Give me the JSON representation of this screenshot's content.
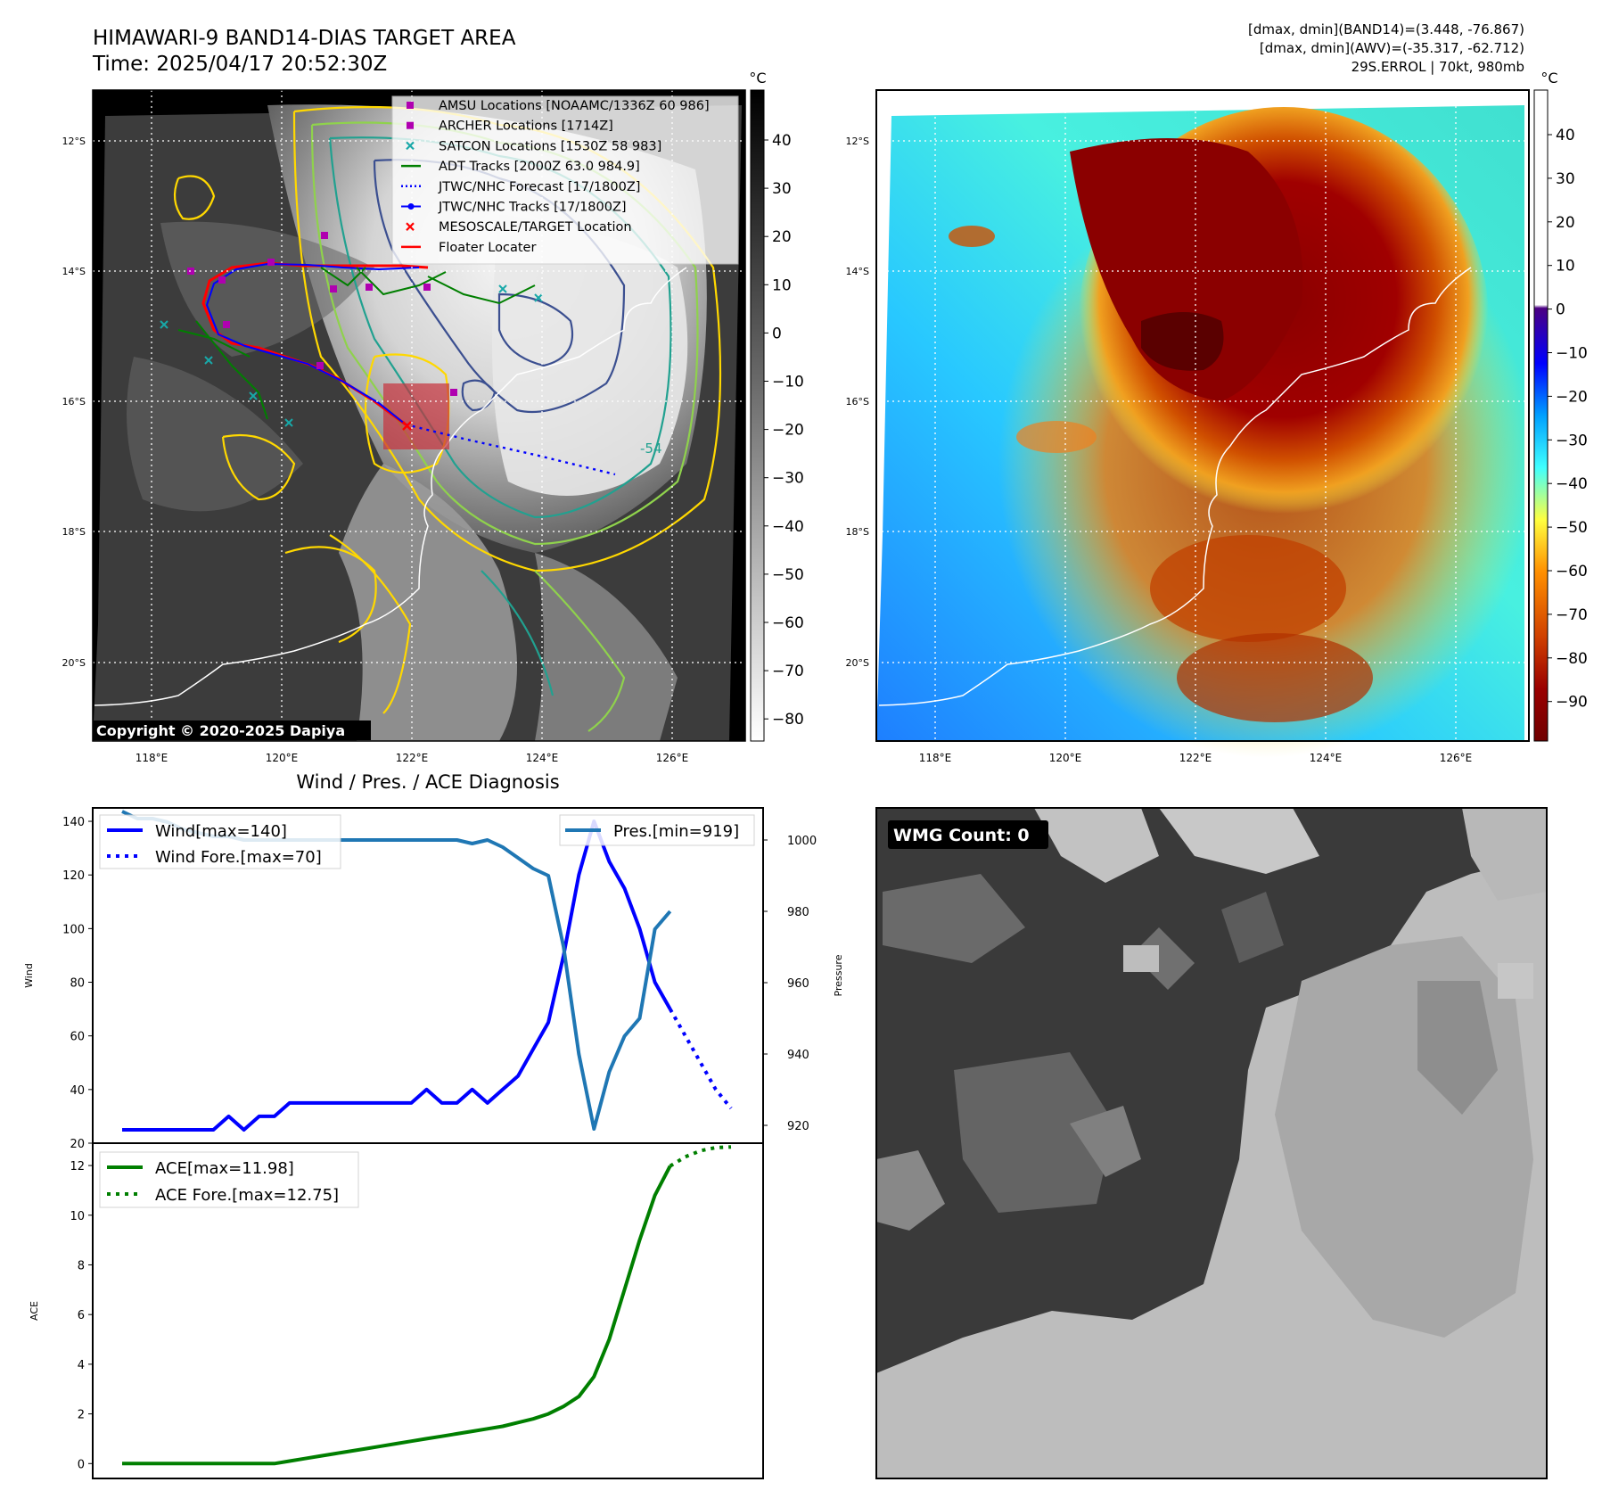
{
  "header": {
    "title": "HIMAWARI-9 BAND14-DIAS TARGET AREA",
    "time": "Time: 2025/04/17 20:52:30Z",
    "dmax_band14": "[dmax, dmin](BAND14)=(3.448, -76.867)",
    "dmax_awv": "[dmax, dmin](AWV)=(-35.317, -62.712)",
    "storm": "29S.ERROL | 70kt, 980mb"
  },
  "maps": {
    "lat_labels": [
      "12°S",
      "14°S",
      "16°S",
      "18°S",
      "20°S"
    ],
    "lon_labels": [
      "118°E",
      "120°E",
      "122°E",
      "124°E",
      "126°E"
    ],
    "copyright": "Copyright © 2020-2025 Dapiya",
    "contour_label": "-54",
    "colorbar_unit": "°C",
    "left_colorbar_ticks": [
      "40",
      "30",
      "20",
      "10",
      "0",
      "−10",
      "−20",
      "−30",
      "−40",
      "−50",
      "−60",
      "−70",
      "−80"
    ],
    "right_colorbar_ticks": [
      "40",
      "30",
      "20",
      "10",
      "0",
      "−10",
      "−20",
      "−30",
      "−40",
      "−50",
      "−60",
      "−70",
      "−80",
      "−90"
    ],
    "legend": [
      {
        "label": "AMSU Locations [NOAAMC/1336Z 60 986]",
        "marker": "square",
        "color": "#b000b0"
      },
      {
        "label": "ARCHER Locations [1714Z]",
        "marker": "square",
        "color": "#b000b0"
      },
      {
        "label": "SATCON Locations [1530Z 58 983]",
        "marker": "x",
        "color": "#18a8a8"
      },
      {
        "label": "ADT Tracks [2000Z 63.0 984.9]",
        "marker": "line",
        "color": "#007f00"
      },
      {
        "label": "JTWC/NHC Forecast [17/1800Z]",
        "marker": "dotted",
        "color": "#0000ff"
      },
      {
        "label": "JTWC/NHC Tracks [17/1800Z]",
        "marker": "line-dot",
        "color": "#0000ff"
      },
      {
        "label": "MESOSCALE/TARGET Location",
        "marker": "x",
        "color": "#ff0000"
      },
      {
        "label": "Floater Locater",
        "marker": "line",
        "color": "#ff0000"
      }
    ]
  },
  "diag": {
    "title": "Wind / Pres. / ACE Diagnosis",
    "wind_ylabel": "Wind",
    "pres_ylabel": "Pressure",
    "ace_ylabel": "ACE",
    "wnd_legend": "Wind[max=140]",
    "wnd_fore_legend": "Wind Fore.[max=70]",
    "pres_legend": "Pres.[min=919]",
    "ace_legend": "ACE[max=11.98]",
    "ace_fore_legend": "ACE Fore.[max=12.75]",
    "wmg": "WMG Count: 0"
  },
  "chart_data": [
    {
      "type": "line",
      "name": "Wind / Pres.",
      "ylim_wind": [
        20,
        145
      ],
      "ylim_pres": [
        915,
        1009
      ],
      "wind_ticks": [
        20,
        40,
        60,
        80,
        100,
        120,
        140
      ],
      "pres_ticks": [
        920,
        940,
        960,
        980,
        1000
      ],
      "series": [
        {
          "name": "Wind[max=140]",
          "color": "#0000ff",
          "axis": "wind",
          "values": [
            25,
            25,
            25,
            25,
            25,
            25,
            25,
            30,
            25,
            30,
            30,
            35,
            35,
            35,
            35,
            35,
            35,
            35,
            35,
            35,
            40,
            35,
            35,
            40,
            35,
            40,
            45,
            55,
            65,
            90,
            120,
            140,
            125,
            115,
            100,
            80,
            70
          ]
        },
        {
          "name": "Wind Fore.[max=70]",
          "color": "#0000ff",
          "axis": "wind",
          "style": "dotted",
          "x_start": 36,
          "values": [
            70,
            60,
            50,
            40,
            33
          ]
        },
        {
          "name": "Pres.[min=919]",
          "color": "#1f77b4",
          "axis": "pres",
          "values": [
            1008,
            1006,
            1006,
            1005,
            1003,
            1002,
            1001,
            1001,
            1000,
            1000,
            1000,
            1000,
            1000,
            1000,
            1000,
            1000,
            1000,
            1000,
            1000,
            1000,
            1000,
            1000,
            1000,
            999,
            1000,
            998,
            995,
            992,
            990,
            970,
            940,
            919,
            935,
            945,
            950,
            975,
            980
          ]
        }
      ]
    },
    {
      "type": "line",
      "name": "ACE",
      "ylim": [
        -0.6,
        12.9
      ],
      "ticks": [
        0,
        2,
        4,
        6,
        8,
        10,
        12
      ],
      "series": [
        {
          "name": "ACE[max=11.98]",
          "color": "#007f00",
          "values": [
            0,
            0,
            0,
            0,
            0,
            0,
            0,
            0,
            0,
            0,
            0,
            0.1,
            0.2,
            0.3,
            0.4,
            0.5,
            0.6,
            0.7,
            0.8,
            0.9,
            1.0,
            1.1,
            1.2,
            1.3,
            1.4,
            1.5,
            1.65,
            1.8,
            2.0,
            2.3,
            2.7,
            3.5,
            5.0,
            7.0,
            9.0,
            10.8,
            11.98
          ]
        },
        {
          "name": "ACE Fore.[max=12.75]",
          "color": "#007f00",
          "style": "dotted",
          "x_start": 36,
          "values": [
            11.98,
            12.35,
            12.6,
            12.72,
            12.75
          ]
        }
      ]
    }
  ]
}
